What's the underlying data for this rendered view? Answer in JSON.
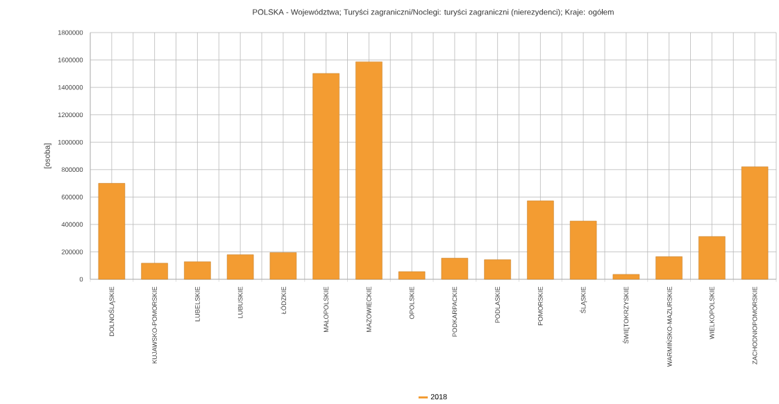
{
  "chart_data": {
    "type": "bar",
    "title": "POLSKA - Województwa; Turyści zagraniczni/Noclegi: turyści zagraniczni (nierezydenci); Kraje: ogółem",
    "ylabel": "[osoba]",
    "categories": [
      "DOLNOŚLĄSKIE",
      "KUJAWSKO-POMORSKIE",
      "LUBELSKIE",
      "LUBUSKIE",
      "ŁÓDZKIE",
      "MAŁOPOLSKIE",
      "MAZOWIECKIE",
      "OPOLSKIE",
      "PODKARPACKIE",
      "PODLASKIE",
      "POMORSKIE",
      "ŚLĄSKIE",
      "ŚWIĘTOKRZYSKIE",
      "WARMIŃSKO-MAZURSKIE",
      "WIELKOPOLSKIE",
      "ZACHODNIOPOMORSKIE"
    ],
    "series": [
      {
        "name": "2018",
        "color": "#f39c32",
        "values": [
          700000,
          117000,
          128000,
          179000,
          195000,
          1502000,
          1587000,
          56000,
          154000,
          143000,
          572000,
          425000,
          36000,
          165000,
          312000,
          821000
        ]
      }
    ],
    "ylim": [
      0,
      1800000
    ],
    "yticks": [
      0,
      200000,
      400000,
      600000,
      800000,
      1000000,
      1200000,
      1400000,
      1600000,
      1800000
    ],
    "grid": true,
    "legend": "bottom"
  }
}
